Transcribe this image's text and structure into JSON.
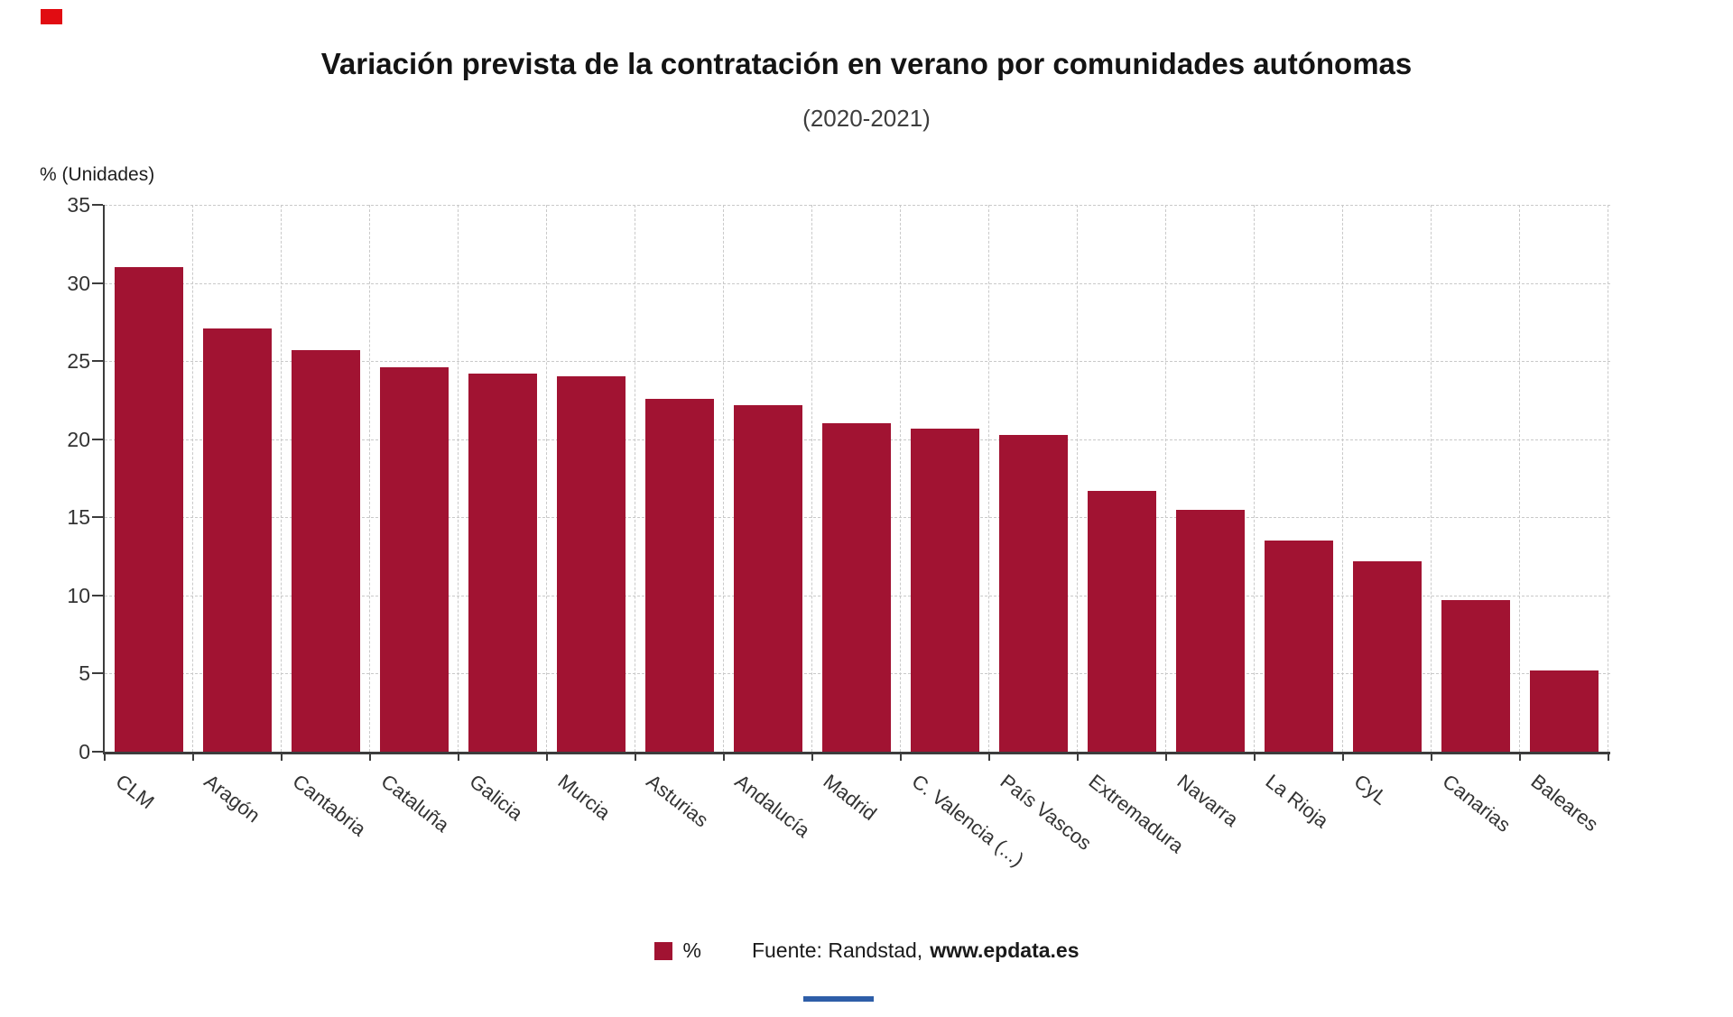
{
  "header": {
    "title": "Variación prevista de la contratación en verano por comunidades autónomas",
    "subtitle": "(2020-2021)"
  },
  "axis": {
    "y_title": "% (Unidades)"
  },
  "footer": {
    "legend_label": "%",
    "source_prefix": "Fuente: Randstad,",
    "source_site": "www.epdata.es"
  },
  "colors": {
    "bar": "#a11332",
    "brand_red": "#e10c12",
    "bottom_bar_blue": "#2e5ea8",
    "grid": "#c9c9c9",
    "axis_line": "#3c3c3c"
  },
  "chart_data": {
    "type": "bar",
    "title": "Variación prevista de la contratación en verano por comunidades autónomas",
    "subtitle": "(2020-2021)",
    "xlabel": "",
    "ylabel": "% (Unidades)",
    "ylim": [
      0,
      35
    ],
    "ytick_step": 5,
    "yticks": [
      0,
      5,
      10,
      15,
      20,
      25,
      30,
      35
    ],
    "grid": true,
    "legend_position": "bottom",
    "series_name": "%",
    "source": "Fuente: Randstad, www.epdata.es",
    "categories": [
      "CLM",
      "Aragón",
      "Cantabria",
      "Cataluña",
      "Galicia",
      "Murcia",
      "Asturias",
      "Andalucía",
      "Madrid",
      "C. Valencia (...)",
      "País Vascos",
      "Extremadura",
      "Navarra",
      "La Rioja",
      "CyL",
      "Canarias",
      "Baleares"
    ],
    "values": [
      31,
      27.1,
      25.7,
      24.6,
      24.2,
      24,
      22.6,
      22.2,
      21,
      20.7,
      20.3,
      16.7,
      15.5,
      13.5,
      12.2,
      9.7,
      5.2
    ]
  }
}
